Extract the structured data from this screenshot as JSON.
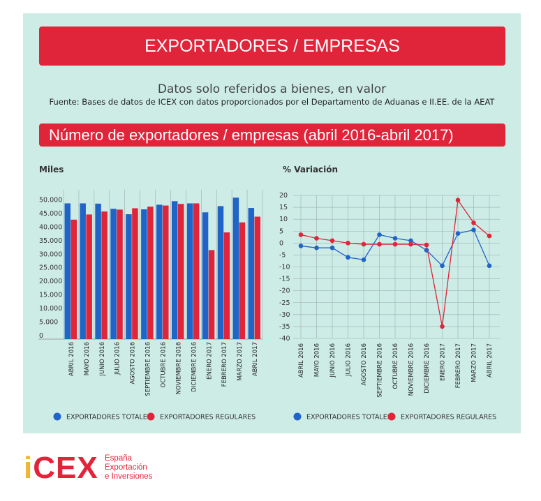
{
  "header": {
    "title": "EXPORTADORES / EMPRESAS",
    "subtitle": "Datos solo referidos a bienes, en valor",
    "source": "Fuente: Bases de datos de ICEX con datos proporcionados por el Departamento de Aduanas e II.EE. de la AEAT",
    "section_title": "Número de exportadores / empresas (abril 2016-abril 2017)"
  },
  "logo": {
    "word_i": "i",
    "word_rest": "CEX",
    "line1": "España",
    "line2": "Exportación",
    "line3": "e Inversiones"
  },
  "colors": {
    "totales": "#2164c8",
    "regulares": "#e0243a"
  },
  "chart_data": [
    {
      "type": "bar",
      "ylabel": "Miles",
      "ylim": [
        0,
        55000
      ],
      "yticks": [
        0,
        5000,
        10000,
        15000,
        20000,
        25000,
        30000,
        35000,
        40000,
        45000,
        50000
      ],
      "ytick_labels": [
        "0",
        "5.000",
        "10.000",
        "15.000",
        "20.000",
        "25.000",
        "30.000",
        "35.000",
        "40.000",
        "45.000",
        "50.000"
      ],
      "grid": true,
      "legend_position": "bottom",
      "categories": [
        "ABRIL 2016",
        "MAYO 2016",
        "JUNIO 2016",
        "JULIO 2016",
        "AGOSTO 2016",
        "SEPTIEMBRE 2016",
        "OCTUBRE 2016",
        "NOVIEMBRE 2016",
        "DICIEMBRE 2016",
        "ENERO 2017",
        "FEBRERO 2017",
        "MARZO 2017",
        "ABRIL 2017"
      ],
      "series": [
        {
          "name": "EXPORTADORES TOTALES",
          "values": [
            50000,
            50000,
            49900,
            48000,
            46000,
            47800,
            49500,
            50800,
            50000,
            46700,
            49000,
            52100,
            48300
          ]
        },
        {
          "name": "EXPORTADORES REGULARES",
          "values": [
            44000,
            45900,
            47000,
            47700,
            48200,
            48800,
            49200,
            49800,
            50000,
            32800,
            39300,
            43000,
            45100
          ]
        }
      ]
    },
    {
      "type": "line",
      "ylabel": "% Variación",
      "ylim": [
        -40,
        20
      ],
      "yticks": [
        -40,
        -35,
        -30,
        -25,
        -20,
        -15,
        -10,
        -5,
        0,
        5,
        10,
        15,
        20
      ],
      "grid": true,
      "legend_position": "bottom",
      "categories": [
        "ABRIL 2016",
        "MAYO 2016",
        "JUNIO 2016",
        "JULIO 2016",
        "AGOSTO 2016",
        "SEPTIEMBRE 2016",
        "OCTUBRE 2016",
        "NOVIEMBRE 2016",
        "DICIEMBRE 2016",
        "ENERO 2017",
        "FEBRERO 2017",
        "MARZO 2017",
        "ABRIL 2017"
      ],
      "series": [
        {
          "name": "EXPORTADORES TOTALES",
          "values": [
            -1.2,
            -2,
            -2,
            -6,
            -7,
            3.5,
            2,
            1,
            -3,
            -9.5,
            4,
            5.5,
            -9.5
          ]
        },
        {
          "name": "EXPORTADORES REGULARES",
          "values": [
            3.5,
            2,
            1,
            0,
            -0.5,
            -0.5,
            -0.5,
            -0.5,
            -0.8,
            -35,
            18,
            8.5,
            3
          ]
        }
      ]
    }
  ]
}
